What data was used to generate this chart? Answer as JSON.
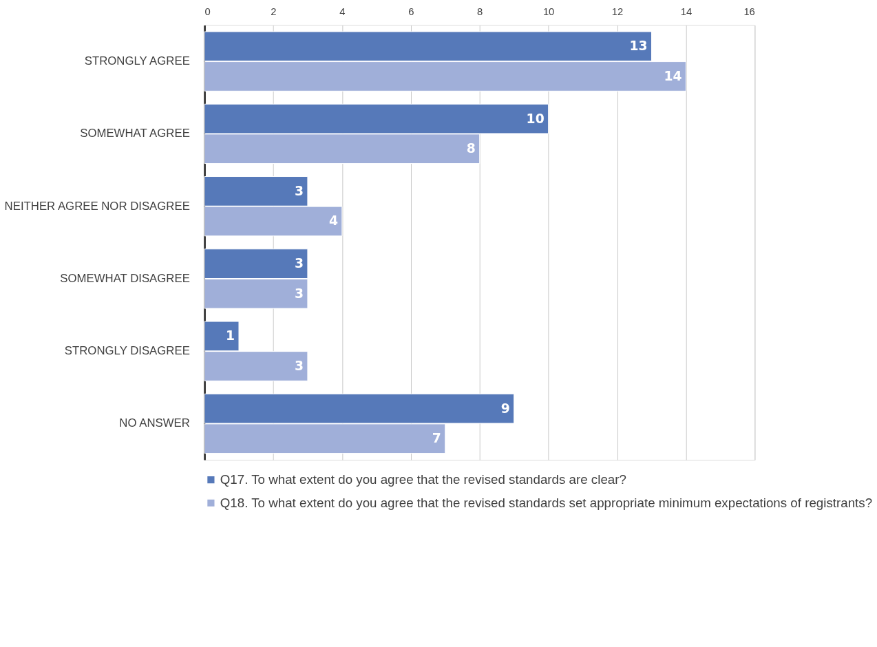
{
  "chart_data": {
    "type": "bar",
    "orientation": "horizontal",
    "categories": [
      "STRONGLY AGREE",
      "SOMEWHAT AGREE",
      "NEITHER AGREE NOR DISAGREE",
      "SOMEWHAT DISAGREE",
      "STRONGLY DISAGREE",
      "NO ANSWER"
    ],
    "series": [
      {
        "name": "Q17. To what extent do you agree that the revised standards are clear?",
        "color": "#5679b9",
        "values": [
          13,
          10,
          3,
          3,
          1,
          9
        ]
      },
      {
        "name": "Q18. To what extent do you agree that the revised standards set appropriate minimum expectations of registrants?",
        "color": "#a0afd9",
        "values": [
          14,
          8,
          4,
          3,
          3,
          7
        ]
      }
    ],
    "xlim": [
      0,
      16
    ],
    "xticks": [
      0,
      2,
      4,
      6,
      8,
      10,
      12,
      14,
      16
    ],
    "grid": "x",
    "legend": "bottom",
    "data_labels": true
  }
}
